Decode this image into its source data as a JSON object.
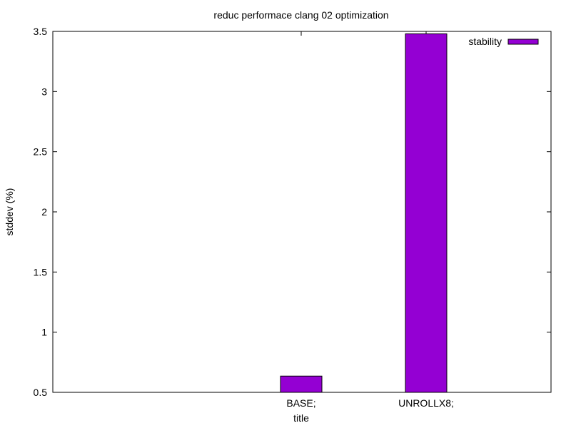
{
  "chart_data": {
    "type": "bar",
    "title": "reduc performace clang 02 optimization",
    "xlabel": "title",
    "ylabel": "stddev (%)",
    "categories": [
      "BASE;",
      "UNROLLX8;"
    ],
    "series": [
      {
        "name": "stability",
        "values": [
          0.635,
          3.48
        ],
        "color": "#9400d3"
      }
    ],
    "ylim": [
      0.5,
      3.5
    ],
    "yticks": [
      0.5,
      1,
      1.5,
      2,
      2.5,
      3,
      3.5
    ],
    "ytick_labels": [
      "0.5",
      "1",
      "1.5",
      "2",
      "2.5",
      "3",
      "3.5"
    ],
    "legend_position": "top-right",
    "grid": false
  }
}
